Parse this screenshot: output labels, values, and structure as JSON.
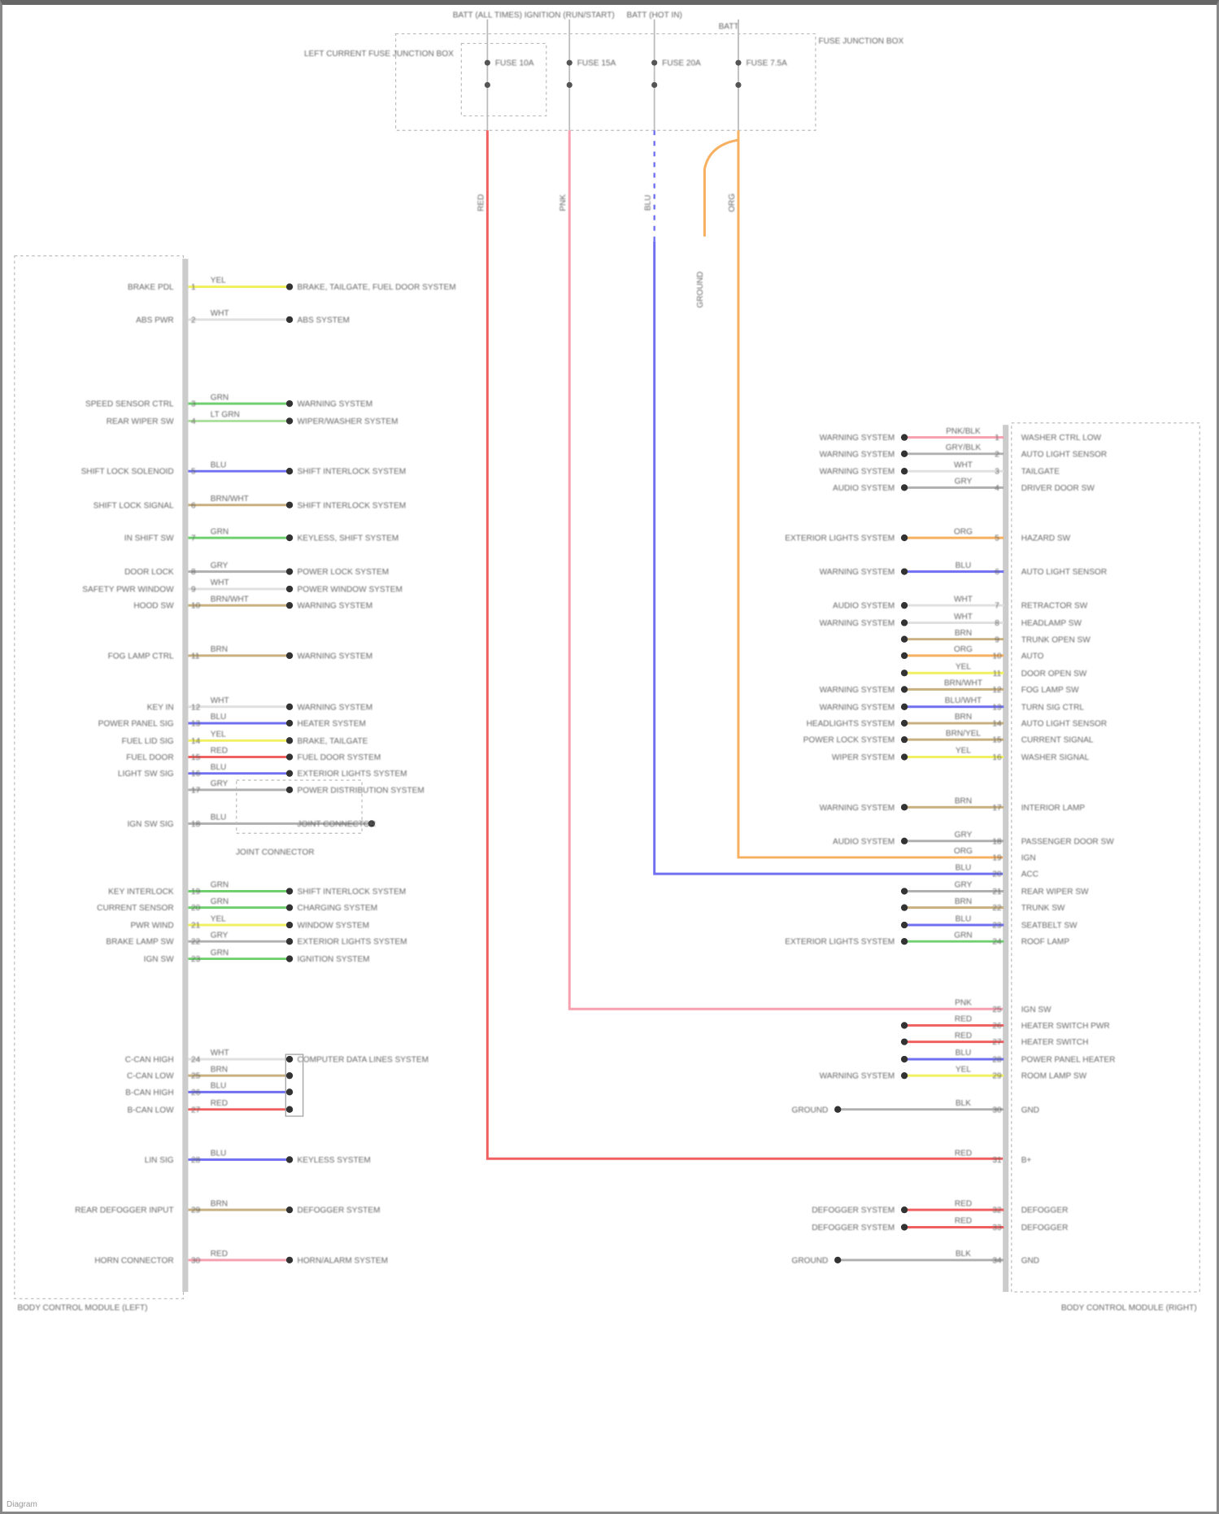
{
  "title_labels": {
    "fuse1": "BATT (ALL TIMES)",
    "fuse2": "IGNITION (RUN/START)",
    "fuse3": "BATT (HOT IN)",
    "fuse4": "BATT",
    "box_left": "LEFT CURRENT FUSE JUNCTION BOX",
    "box_right": "FUSE JUNCTION BOX",
    "f1": "FUSE 10A",
    "f2": "FUSE 15A",
    "f3": "FUSE 20A",
    "f4": "FUSE 7.5A",
    "ground": "GROUND",
    "left_module": "BODY CONTROL MODULE (LEFT)",
    "right_module": "BODY CONTROL MODULE (RIGHT)",
    "splice": "JOINT CONNECTOR",
    "footer": "Diagram"
  },
  "colors": {
    "red": "#f06060",
    "pink": "#f7a0b0",
    "blue": "#7070f0",
    "orange": "#f7b060",
    "yellow": "#f0f060",
    "green": "#70d070",
    "lightgreen": "#b0e0a0",
    "tan": "#c8b080",
    "gray": "#b0b0b0",
    "white": "#e0e0e0"
  },
  "vertical_wires": [
    {
      "label": "RED",
      "color": "red"
    },
    {
      "label": "PNK",
      "color": "pink"
    },
    {
      "label": "BLU",
      "color": "blue"
    },
    {
      "label": "ORG",
      "color": "orange"
    }
  ],
  "left_rows": [
    {
      "label": "BRAKE PDL",
      "wire": "YEL",
      "color": "yellow",
      "dest": "BRAKE, TAILGATE, FUEL DOOR SYSTEM"
    },
    {
      "label": "ABS PWR",
      "wire": "WHT",
      "color": "white",
      "dest": "ABS SYSTEM"
    },
    {
      "label": "SPEED SENSOR CTRL",
      "wire": "GRN",
      "color": "green",
      "dest": "WARNING SYSTEM"
    },
    {
      "label": "REAR WIPER SW",
      "wire": "LT GRN",
      "color": "lightgreen",
      "dest": "WIPER/WASHER SYSTEM"
    },
    {
      "label": "SHIFT LOCK SOLENOID",
      "wire": "BLU",
      "color": "blue",
      "dest": "SHIFT INTERLOCK SYSTEM"
    },
    {
      "label": "SHIFT LOCK SIGNAL",
      "wire": "BRN/WHT",
      "color": "tan",
      "dest": "SHIFT INTERLOCK SYSTEM"
    },
    {
      "label": "IN SHIFT SW",
      "wire": "GRN",
      "color": "green",
      "dest": "KEYLESS, SHIFT SYSTEM"
    },
    {
      "label": "DOOR LOCK",
      "wire": "GRY",
      "color": "gray",
      "dest": "POWER LOCK SYSTEM"
    },
    {
      "label": "SAFETY PWR WINDOW",
      "wire": "WHT",
      "color": "white",
      "dest": "POWER WINDOW SYSTEM"
    },
    {
      "label": "HOOD SW",
      "wire": "BRN/WHT",
      "color": "tan",
      "dest": "WARNING SYSTEM"
    },
    {
      "label": "FOG LAMP CTRL",
      "wire": "BRN",
      "color": "tan",
      "dest": "WARNING SYSTEM"
    },
    {
      "label": "KEY IN",
      "wire": "WHT",
      "color": "white",
      "dest": "WARNING SYSTEM"
    },
    {
      "label": "POWER PANEL SIG",
      "wire": "BLU",
      "color": "blue",
      "dest": "HEATER SYSTEM"
    },
    {
      "label": "FUEL LID SIG",
      "wire": "YEL",
      "color": "yellow",
      "dest": "BRAKE, TAILGATE"
    },
    {
      "label": "FUEL DOOR",
      "wire": "RED",
      "color": "red",
      "dest": "FUEL DOOR SYSTEM"
    },
    {
      "label": "LIGHT SW SIG",
      "wire": "BLU",
      "color": "blue",
      "dest": "EXTERIOR LIGHTS SYSTEM"
    },
    {
      "label": "",
      "wire": "GRY",
      "color": "gray",
      "dest": "POWER DISTRIBUTION SYSTEM"
    },
    {
      "label": "IGN SW SIG",
      "wire": "BLU",
      "color": "gray",
      "dest": "JOINT CONNECTOR"
    },
    {
      "label": "KEY INTERLOCK",
      "wire": "GRN",
      "color": "green",
      "dest": "SHIFT INTERLOCK SYSTEM"
    },
    {
      "label": "CURRENT SENSOR",
      "wire": "GRN",
      "color": "green",
      "dest": "CHARGING SYSTEM"
    },
    {
      "label": "PWR WIND",
      "wire": "YEL",
      "color": "yellow",
      "dest": "WINDOW SYSTEM"
    },
    {
      "label": "BRAKE LAMP SW",
      "wire": "GRY",
      "color": "gray",
      "dest": "EXTERIOR LIGHTS SYSTEM"
    },
    {
      "label": "IGN SW",
      "wire": "GRN",
      "color": "green",
      "dest": "IGNITION SYSTEM"
    },
    {
      "label": "C-CAN HIGH",
      "wire": "WHT",
      "color": "white",
      "dest": "COMPUTER DATA LINES SYSTEM"
    },
    {
      "label": "C-CAN LOW",
      "wire": "BRN",
      "color": "tan",
      "dest": ""
    },
    {
      "label": "B-CAN HIGH",
      "wire": "BLU",
      "color": "blue",
      "dest": ""
    },
    {
      "label": "B-CAN LOW",
      "wire": "RED",
      "color": "red",
      "dest": ""
    },
    {
      "label": "LIN SIG",
      "wire": "BLU",
      "color": "blue",
      "dest": "KEYLESS SYSTEM"
    },
    {
      "label": "REAR DEFOGGER INPUT",
      "wire": "BRN",
      "color": "tan",
      "dest": "DEFOGGER SYSTEM"
    },
    {
      "label": "HORN CONNECTOR",
      "wire": "RED",
      "color": "pink",
      "dest": "HORN/ALARM SYSTEM"
    }
  ],
  "right_rows": [
    {
      "label": "WARNING SYSTEM",
      "wire": "PNK/BLK",
      "color": "pink",
      "dest": "WASHER CTRL LOW"
    },
    {
      "label": "WARNING SYSTEM",
      "wire": "GRY/BLK",
      "color": "gray",
      "dest": "AUTO LIGHT SENSOR"
    },
    {
      "label": "WARNING SYSTEM",
      "wire": "WHT",
      "color": "white",
      "dest": "TAILGATE"
    },
    {
      "label": "AUDIO SYSTEM",
      "wire": "GRY",
      "color": "gray",
      "dest": "DRIVER DOOR SW"
    },
    {
      "label": "EXTERIOR LIGHTS SYSTEM",
      "wire": "ORG",
      "color": "orange",
      "dest": "HAZARD SW"
    },
    {
      "label": "WARNING SYSTEM",
      "wire": "BLU",
      "color": "blue",
      "dest": "AUTO LIGHT SENSOR"
    },
    {
      "label": "AUDIO SYSTEM",
      "wire": "WHT",
      "color": "white",
      "dest": "RETRACTOR SW"
    },
    {
      "label": "WARNING SYSTEM",
      "wire": "WHT",
      "color": "white",
      "dest": "HEADLAMP SW"
    },
    {
      "label": "",
      "wire": "BRN",
      "color": "tan",
      "dest": "TRUNK OPEN SW"
    },
    {
      "label": "",
      "wire": "ORG",
      "color": "orange",
      "dest": "AUTO"
    },
    {
      "label": "",
      "wire": "YEL",
      "color": "yellow",
      "dest": "DOOR OPEN SW"
    },
    {
      "label": "WARNING SYSTEM",
      "wire": "BRN/WHT",
      "color": "tan",
      "dest": "FOG LAMP SW"
    },
    {
      "label": "WARNING SYSTEM",
      "wire": "BLU/WHT",
      "color": "blue",
      "dest": "TURN SIG CTRL"
    },
    {
      "label": "HEADLIGHTS SYSTEM",
      "wire": "BRN",
      "color": "tan",
      "dest": "AUTO LIGHT SENSOR"
    },
    {
      "label": "POWER LOCK SYSTEM",
      "wire": "BRN/YEL",
      "color": "tan",
      "dest": "CURRENT SIGNAL"
    },
    {
      "label": "WIPER SYSTEM",
      "wire": "YEL",
      "color": "yellow",
      "dest": "WASHER SIGNAL"
    },
    {
      "label": "WARNING SYSTEM",
      "wire": "BRN",
      "color": "tan",
      "dest": "INTERIOR LAMP"
    },
    {
      "label": "AUDIO SYSTEM",
      "wire": "GRY",
      "color": "gray",
      "dest": "PASSENGER DOOR SW"
    },
    {
      "label": "",
      "wire": "ORG",
      "color": "orange",
      "dest": "IGN"
    },
    {
      "label": "",
      "wire": "BLU",
      "color": "blue",
      "dest": "ACC"
    },
    {
      "label": "",
      "wire": "GRY",
      "color": "gray",
      "dest": "REAR WIPER SW"
    },
    {
      "label": "",
      "wire": "BRN",
      "color": "tan",
      "dest": "TRUNK SW"
    },
    {
      "label": "",
      "wire": "BLU",
      "color": "blue",
      "dest": "SEATBELT SW"
    },
    {
      "label": "EXTERIOR LIGHTS SYSTEM",
      "wire": "GRN",
      "color": "green",
      "dest": "ROOF LAMP"
    },
    {
      "label": "",
      "wire": "PNK",
      "color": "pink",
      "dest": "IGN SW"
    },
    {
      "label": "",
      "wire": "RED",
      "color": "red",
      "dest": "HEATER SWITCH PWR"
    },
    {
      "label": "",
      "wire": "RED",
      "color": "red",
      "dest": "HEATER SWITCH"
    },
    {
      "label": "",
      "wire": "BLU",
      "color": "blue",
      "dest": "POWER PANEL HEATER"
    },
    {
      "label": "WARNING SYSTEM",
      "wire": "YEL",
      "color": "yellow",
      "dest": "ROOM LAMP SW"
    },
    {
      "label": "GROUND",
      "wire": "BLK",
      "color": "gray",
      "dest": "GND"
    },
    {
      "label": "",
      "wire": "RED",
      "color": "red",
      "dest": "B+"
    },
    {
      "label": "DEFOGGER SYSTEM",
      "wire": "RED",
      "color": "red",
      "dest": "DEFOGGER"
    },
    {
      "label": "DEFOGGER SYSTEM",
      "wire": "RED",
      "color": "red",
      "dest": "DEFOGGER"
    },
    {
      "label": "GROUND",
      "wire": "BLK",
      "color": "gray",
      "dest": "GND"
    }
  ]
}
